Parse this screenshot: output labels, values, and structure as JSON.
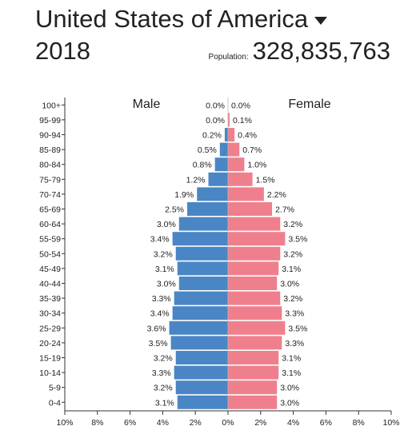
{
  "header": {
    "country": "United States of America",
    "year": "2018",
    "population_label": "Population:",
    "population_value": "328,835,763"
  },
  "colors": {
    "male": "#4a86c5",
    "female": "#f07f8d",
    "axis": "#333333"
  },
  "chart_data": {
    "type": "bar",
    "orientation": "horizontal-mirrored",
    "categories": [
      "100+",
      "95-99",
      "90-94",
      "85-89",
      "80-84",
      "75-79",
      "70-74",
      "65-69",
      "60-64",
      "55-59",
      "50-54",
      "45-49",
      "40-44",
      "35-39",
      "30-34",
      "25-29",
      "20-24",
      "15-19",
      "10-14",
      "5-9",
      "0-4"
    ],
    "series": [
      {
        "name": "Male",
        "values": [
          0.0,
          0.0,
          0.2,
          0.5,
          0.8,
          1.2,
          1.9,
          2.5,
          3.0,
          3.4,
          3.2,
          3.1,
          3.0,
          3.3,
          3.4,
          3.6,
          3.5,
          3.2,
          3.3,
          3.2,
          3.1
        ]
      },
      {
        "name": "Female",
        "values": [
          0.0,
          0.1,
          0.4,
          0.7,
          1.0,
          1.5,
          2.2,
          2.7,
          3.2,
          3.5,
          3.2,
          3.1,
          3.0,
          3.2,
          3.3,
          3.5,
          3.3,
          3.1,
          3.1,
          3.0,
          3.0
        ]
      }
    ],
    "xlim": [
      -10,
      10
    ],
    "xticks": [
      "10%",
      "8%",
      "6%",
      "4%",
      "2%",
      "0%",
      "2%",
      "4%",
      "6%",
      "8%",
      "10%"
    ],
    "grid": false
  }
}
